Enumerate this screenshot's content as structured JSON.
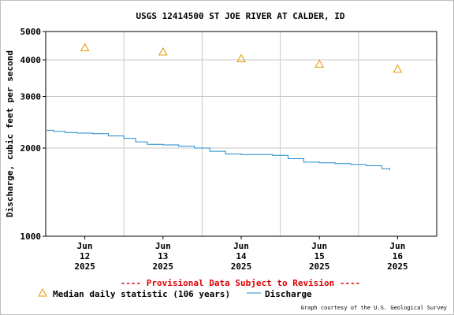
{
  "chart_data": {
    "type": "line",
    "title": "USGS 12414500 ST JOE RIVER AT CALDER, ID",
    "ylabel": "Discharge, cubic feet per second",
    "xlabel": "",
    "y_scale": "log",
    "ylim": [
      1000,
      5000
    ],
    "y_ticks": [
      "1000",
      "2000",
      "3000",
      "4000",
      "5000"
    ],
    "y_tick_values": [
      1000,
      2000,
      3000,
      4000,
      5000
    ],
    "x_range_days": [
      11.5,
      16.5
    ],
    "x_ticks": [
      {
        "day": 12,
        "month": "Jun",
        "date": "12",
        "year": "2025"
      },
      {
        "day": 13,
        "month": "Jun",
        "date": "13",
        "year": "2025"
      },
      {
        "day": 14,
        "month": "Jun",
        "date": "14",
        "year": "2025"
      },
      {
        "day": 15,
        "month": "Jun",
        "date": "15",
        "year": "2025"
      },
      {
        "day": 16,
        "month": "Jun",
        "date": "16",
        "year": "2025"
      }
    ],
    "grid": true,
    "legend_position": "bottom",
    "series": [
      {
        "name": "Discharge",
        "kind": "line",
        "color": "#1f8ac9",
        "x_day": [
          11.5,
          11.6,
          11.75,
          11.9,
          12.1,
          12.3,
          12.5,
          12.65,
          12.8,
          13.0,
          13.2,
          13.4,
          13.6,
          13.8,
          14.0,
          14.2,
          14.4,
          14.6,
          14.8,
          15.0,
          15.2,
          15.4,
          15.6,
          15.8,
          15.9
        ],
        "values": [
          2300,
          2280,
          2260,
          2250,
          2240,
          2200,
          2160,
          2100,
          2060,
          2050,
          2030,
          2000,
          1950,
          1910,
          1900,
          1900,
          1890,
          1840,
          1790,
          1780,
          1770,
          1760,
          1740,
          1700,
          1680
        ]
      },
      {
        "name": "Median daily statistic (106 years)",
        "kind": "marker",
        "marker": "triangle",
        "color": "#e39a00",
        "x_day": [
          12,
          13,
          14,
          15,
          16
        ],
        "values": [
          4400,
          4260,
          4040,
          3870,
          3720
        ]
      }
    ]
  },
  "notice": "---- Provisional Data Subject to Revision ----",
  "legend": {
    "median_label": "Median daily statistic (106 years)",
    "discharge_label": "Discharge"
  },
  "credit": "Graph courtesy of the U.S. Geological Survey"
}
